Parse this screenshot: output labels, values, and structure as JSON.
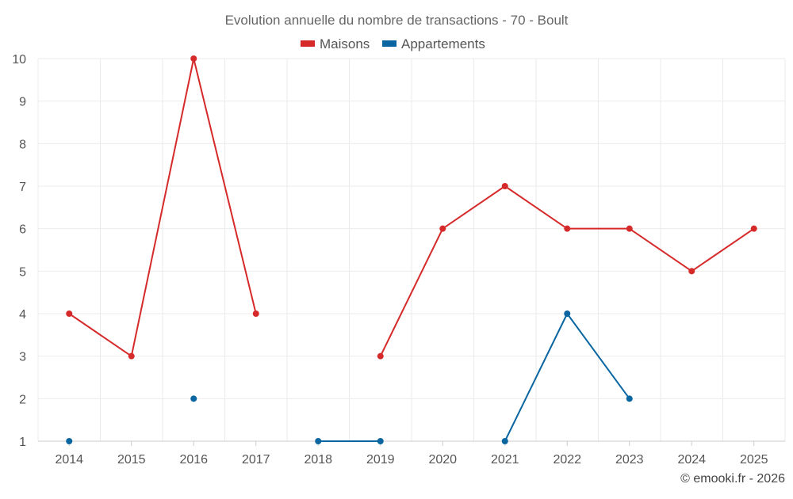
{
  "chart_data": {
    "type": "line",
    "title": "Evolution annuelle du nombre de transactions - 70 - Boult",
    "xlabel": "",
    "ylabel": "",
    "categories": [
      "2014",
      "2015",
      "2016",
      "2017",
      "2018",
      "2019",
      "2020",
      "2021",
      "2022",
      "2023",
      "2024",
      "2025"
    ],
    "ylim": [
      1,
      10
    ],
    "yticks": [
      1,
      2,
      3,
      4,
      5,
      6,
      7,
      8,
      9,
      10
    ],
    "grid": true,
    "legend_position": "top-center",
    "series": [
      {
        "name": "Maisons",
        "color": "#d62a2a",
        "values": [
          4,
          3,
          10,
          4,
          null,
          3,
          6,
          7,
          6,
          6,
          5,
          6
        ]
      },
      {
        "name": "Appartements",
        "color": "#0a66a0",
        "values": [
          1,
          null,
          2,
          null,
          1,
          1,
          null,
          1,
          4,
          2,
          null,
          null
        ]
      }
    ]
  },
  "footer": {
    "credit": "© emooki.fr - 2026"
  }
}
